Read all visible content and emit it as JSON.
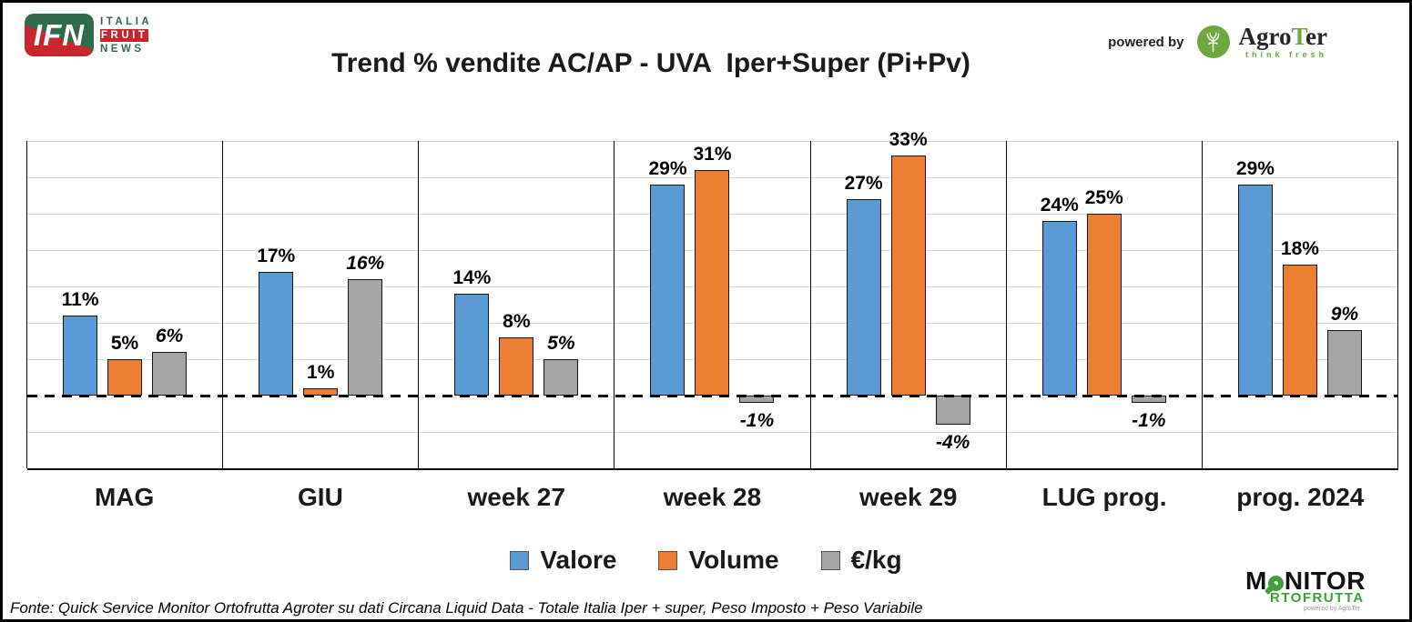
{
  "header": {
    "ifn_logo": {
      "abbr": "IFN",
      "line1": "ITALIA",
      "line2": "FRUIT",
      "line3": "NEWS"
    },
    "title": "Trend % vendite AC/AP - UVA  Iper+Super (Pi+Pv)",
    "powered_by": "powered by",
    "agroter": {
      "part1": "Agro",
      "part2": "T",
      "part3": "er",
      "tagline": "think fresh"
    }
  },
  "chart_data": {
    "type": "bar",
    "title": "Trend % vendite AC/AP - UVA  Iper+Super (Pi+Pv)",
    "categories": [
      "MAG",
      "GIU",
      "week 27",
      "week 28",
      "week 29",
      "LUG prog.",
      "prog. 2024"
    ],
    "series": [
      {
        "name": "Valore",
        "color": "#5B9BD5",
        "values": [
          11,
          17,
          14,
          29,
          27,
          24,
          29
        ]
      },
      {
        "name": "Volume",
        "color": "#ED7D31",
        "values": [
          5,
          1,
          8,
          31,
          33,
          25,
          18
        ]
      },
      {
        "name": "€/kg",
        "color": "#A5A5A5",
        "values": [
          6,
          16,
          5,
          -1,
          -4,
          -1,
          9
        ],
        "label_italic": true
      }
    ],
    "ylim": [
      -10,
      35
    ],
    "grid_step": 5,
    "grid": true,
    "legend_position": "bottom",
    "value_label_format": "{v}%",
    "ylabel": "",
    "xlabel": ""
  },
  "legend": {
    "items": [
      {
        "label": "Valore",
        "color": "#5B9BD5"
      },
      {
        "label": "Volume",
        "color": "#ED7D31"
      },
      {
        "label": "€/kg",
        "color": "#A5A5A5"
      }
    ]
  },
  "footer": {
    "fonte": "Fonte: Quick Service Monitor Ortofrutta Agroter su dati Circana Liquid Data - Totale Italia Iper + super, Peso Imposto + Peso Variabile",
    "monitor": {
      "m": "M",
      "nitor": "NITOR",
      "line2": "RTOFRUTTA",
      "powered": "powered by AgroTer"
    }
  },
  "colors": {
    "valore": "#5B9BD5",
    "volume": "#ED7D31",
    "eur_kg": "#A5A5A5",
    "ifn_green": "#2F6A4D",
    "ifn_red": "#C9252C",
    "agroter_green": "#6CA83D",
    "monitor_green": "#3FA03A",
    "gridline": "#D6D6D6"
  }
}
